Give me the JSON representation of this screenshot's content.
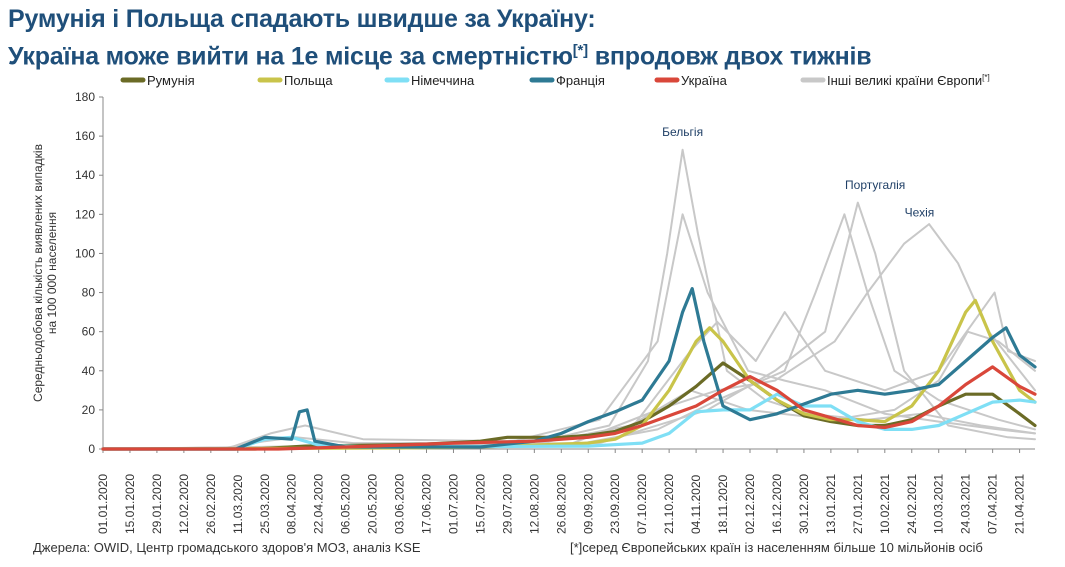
{
  "title_line1": "Румунія і Польща спадають швидше за Україну:",
  "title_line2": "Україна може вийти на 1е місце за смертністю",
  "title_mark": "[*]",
  "title_line2_end": " впродовж двох тижнів",
  "source": "Джерела: OWID, Центр громадського здоров'я МОЗ, аналіз KSE",
  "footnote": "[*]серед Європейських країн із населенням більше 10 мільйонів осіб",
  "chart_data": {
    "type": "line",
    "ylabel": [
      "Середньодобова кількість виявлених випадків",
      "на 100 000 населення"
    ],
    "ylim": [
      0,
      180
    ],
    "yticks": [
      0,
      20,
      40,
      60,
      80,
      100,
      120,
      140,
      160,
      180
    ],
    "xlim": [
      "2020-01-01",
      "2021-04-29"
    ],
    "xtick_labels": [
      "01.01.2020",
      "15.01.2020",
      "29.01.2020",
      "12.02.2020",
      "26.02.2020",
      "11.03.2020",
      "25.03.2020",
      "08.04.2020",
      "22.04.2020",
      "06.05.2020",
      "20.05.2020",
      "03.06.2020",
      "17.06.2020",
      "01.07.2020",
      "15.07.2020",
      "29.07.2020",
      "12.08.2020",
      "26.08.2020",
      "09.09.2020",
      "23.09.2020",
      "07.10.2020",
      "21.10.2020",
      "04.11.2020",
      "18.11.2020",
      "02.12.2020",
      "16.12.2020",
      "30.12.2020",
      "13.01.2021",
      "27.01.2021",
      "10.02.2021",
      "24.02.2021",
      "10.03.2021",
      "24.03.2021",
      "07.04.2021",
      "21.04.2021"
    ],
    "grid": false,
    "legend_position": "top",
    "annotations": [
      {
        "text": "Бельгія",
        "x": "2020-10-28",
        "y": 160
      },
      {
        "text": "Португалія",
        "x": "2021-02-05",
        "y": 133
      },
      {
        "text": "Чехія",
        "x": "2021-02-28",
        "y": 119
      }
    ],
    "series": [
      {
        "name": "Інші великі країни Європи",
        "name_mark": "[*]",
        "color": "#c8c8c8",
        "group": true,
        "lines": [
          [
            [
              "2020-01-01",
              0
            ],
            [
              "2020-03-01",
              0
            ],
            [
              "2020-03-25",
              4
            ],
            [
              "2020-04-10",
              6
            ],
            [
              "2020-05-10",
              3
            ],
            [
              "2020-07-01",
              3
            ],
            [
              "2020-08-20",
              5
            ],
            [
              "2020-09-20",
              12
            ],
            [
              "2020-10-10",
              45
            ],
            [
              "2020-10-20",
              100
            ],
            [
              "2020-10-28",
              153
            ],
            [
              "2020-11-05",
              110
            ],
            [
              "2020-11-20",
              40
            ],
            [
              "2020-12-10",
              25
            ],
            [
              "2021-01-01",
              18
            ],
            [
              "2021-02-01",
              15
            ],
            [
              "2021-03-01",
              18
            ],
            [
              "2021-04-01",
              12
            ],
            [
              "2021-04-29",
              8
            ]
          ],
          [
            [
              "2020-01-01",
              0
            ],
            [
              "2020-03-05",
              0
            ],
            [
              "2020-03-28",
              8
            ],
            [
              "2020-04-15",
              12
            ],
            [
              "2020-05-15",
              5
            ],
            [
              "2020-08-01",
              4
            ],
            [
              "2020-09-15",
              15
            ],
            [
              "2020-10-15",
              55
            ],
            [
              "2020-10-28",
              120
            ],
            [
              "2020-11-10",
              80
            ],
            [
              "2020-12-01",
              40
            ],
            [
              "2020-12-20",
              35
            ],
            [
              "2021-01-10",
              30
            ],
            [
              "2021-02-10",
              18
            ],
            [
              "2021-03-10",
              14
            ],
            [
              "2021-04-10",
              10
            ],
            [
              "2021-04-29",
              8
            ]
          ],
          [
            [
              "2020-01-01",
              0
            ],
            [
              "2020-09-01",
              2
            ],
            [
              "2020-10-15",
              10
            ],
            [
              "2020-11-15",
              25
            ],
            [
              "2020-12-20",
              40
            ],
            [
              "2021-01-05",
              80
            ],
            [
              "2021-01-20",
              120
            ],
            [
              "2021-02-01",
              80
            ],
            [
              "2021-02-15",
              40
            ],
            [
              "2021-03-10",
              25
            ],
            [
              "2021-04-10",
              15
            ],
            [
              "2021-04-29",
              10
            ]
          ],
          [
            [
              "2020-01-01",
              0
            ],
            [
              "2020-09-15",
              3
            ],
            [
              "2020-11-10",
              20
            ],
            [
              "2020-12-15",
              40
            ],
            [
              "2021-01-10",
              60
            ],
            [
              "2021-01-27",
              126
            ],
            [
              "2021-02-05",
              100
            ],
            [
              "2021-02-20",
              40
            ],
            [
              "2021-03-15",
              12
            ],
            [
              "2021-04-15",
              6
            ],
            [
              "2021-04-29",
              5
            ]
          ],
          [
            [
              "2020-01-01",
              0
            ],
            [
              "2020-09-01",
              3
            ],
            [
              "2020-10-15",
              20
            ],
            [
              "2020-11-15",
              30
            ],
            [
              "2020-12-15",
              35
            ],
            [
              "2021-01-15",
              55
            ],
            [
              "2021-02-01",
              80
            ],
            [
              "2021-02-20",
              105
            ],
            [
              "2021-03-05",
              115
            ],
            [
              "2021-03-20",
              95
            ],
            [
              "2021-04-05",
              60
            ],
            [
              "2021-04-29",
              30
            ]
          ],
          [
            [
              "2020-01-01",
              0
            ],
            [
              "2020-08-01",
              2
            ],
            [
              "2020-10-01",
              10
            ],
            [
              "2020-11-01",
              50
            ],
            [
              "2020-11-15",
              65
            ],
            [
              "2020-12-05",
              45
            ],
            [
              "2020-12-20",
              70
            ],
            [
              "2021-01-10",
              40
            ],
            [
              "2021-02-10",
              30
            ],
            [
              "2021-03-10",
              40
            ],
            [
              "2021-04-08",
              80
            ],
            [
              "2021-04-15",
              50
            ],
            [
              "2021-04-29",
              45
            ]
          ],
          [
            [
              "2020-01-01",
              0
            ],
            [
              "2020-08-15",
              3
            ],
            [
              "2020-10-01",
              12
            ],
            [
              "2020-11-01",
              30
            ],
            [
              "2020-12-01",
              20
            ],
            [
              "2021-01-15",
              15
            ],
            [
              "2021-02-15",
              20
            ],
            [
              "2021-03-10",
              35
            ],
            [
              "2021-03-25",
              60
            ],
            [
              "2021-04-10",
              55
            ],
            [
              "2021-04-29",
              40
            ]
          ]
        ]
      },
      {
        "name": "Румунія",
        "color": "#6b6b26",
        "points": [
          [
            "2020-01-01",
            0
          ],
          [
            "2020-03-20",
            0
          ],
          [
            "2020-04-15",
            1.5
          ],
          [
            "2020-05-20",
            2
          ],
          [
            "2020-06-17",
            2.5
          ],
          [
            "2020-07-15",
            4
          ],
          [
            "2020-07-29",
            6
          ],
          [
            "2020-08-26",
            6
          ],
          [
            "2020-09-09",
            7
          ],
          [
            "2020-09-23",
            9
          ],
          [
            "2020-10-07",
            14
          ],
          [
            "2020-10-21",
            22
          ],
          [
            "2020-11-04",
            32
          ],
          [
            "2020-11-18",
            44
          ],
          [
            "2020-12-02",
            35
          ],
          [
            "2020-12-16",
            25
          ],
          [
            "2020-12-30",
            17
          ],
          [
            "2021-01-13",
            14
          ],
          [
            "2021-01-27",
            12
          ],
          [
            "2021-02-10",
            12
          ],
          [
            "2021-02-24",
            15
          ],
          [
            "2021-03-10",
            22
          ],
          [
            "2021-03-24",
            28
          ],
          [
            "2021-04-07",
            28
          ],
          [
            "2021-04-21",
            18
          ],
          [
            "2021-04-29",
            12
          ]
        ]
      },
      {
        "name": "Польща",
        "color": "#c9c44a",
        "points": [
          [
            "2020-01-01",
            0
          ],
          [
            "2020-06-01",
            0.5
          ],
          [
            "2020-07-15",
            1
          ],
          [
            "2020-08-12",
            2
          ],
          [
            "2020-09-09",
            3
          ],
          [
            "2020-09-23",
            5
          ],
          [
            "2020-10-07",
            12
          ],
          [
            "2020-10-21",
            30
          ],
          [
            "2020-11-04",
            55
          ],
          [
            "2020-11-11",
            62
          ],
          [
            "2020-11-18",
            55
          ],
          [
            "2020-12-02",
            35
          ],
          [
            "2020-12-16",
            25
          ],
          [
            "2020-12-30",
            18
          ],
          [
            "2021-01-13",
            15
          ],
          [
            "2021-01-27",
            15
          ],
          [
            "2021-02-10",
            14
          ],
          [
            "2021-02-24",
            22
          ],
          [
            "2021-03-10",
            40
          ],
          [
            "2021-03-24",
            70
          ],
          [
            "2021-03-29",
            76
          ],
          [
            "2021-04-07",
            55
          ],
          [
            "2021-04-21",
            30
          ],
          [
            "2021-04-29",
            24
          ]
        ]
      },
      {
        "name": "Німеччина",
        "color": "#7fdff5",
        "points": [
          [
            "2020-01-01",
            0
          ],
          [
            "2020-03-10",
            0
          ],
          [
            "2020-03-25",
            5
          ],
          [
            "2020-04-08",
            6
          ],
          [
            "2020-04-22",
            2
          ],
          [
            "2020-05-20",
            1
          ],
          [
            "2020-09-09",
            1.5
          ],
          [
            "2020-10-07",
            3
          ],
          [
            "2020-10-21",
            8
          ],
          [
            "2020-11-04",
            19
          ],
          [
            "2020-11-18",
            20
          ],
          [
            "2020-12-02",
            20
          ],
          [
            "2020-12-16",
            28
          ],
          [
            "2020-12-30",
            22
          ],
          [
            "2021-01-13",
            22
          ],
          [
            "2021-01-27",
            14
          ],
          [
            "2021-02-10",
            10
          ],
          [
            "2021-02-24",
            10
          ],
          [
            "2021-03-10",
            12
          ],
          [
            "2021-03-24",
            18
          ],
          [
            "2021-04-07",
            24
          ],
          [
            "2021-04-21",
            25
          ],
          [
            "2021-04-29",
            24
          ]
        ]
      },
      {
        "name": "Франція",
        "color": "#2e7a94",
        "points": [
          [
            "2020-01-01",
            0
          ],
          [
            "2020-03-10",
            0
          ],
          [
            "2020-03-25",
            6
          ],
          [
            "2020-04-08",
            5
          ],
          [
            "2020-04-12",
            19
          ],
          [
            "2020-04-16",
            20
          ],
          [
            "2020-04-20",
            4
          ],
          [
            "2020-05-06",
            1
          ],
          [
            "2020-07-15",
            1
          ],
          [
            "2020-08-12",
            4
          ],
          [
            "2020-08-26",
            8
          ],
          [
            "2020-09-09",
            14
          ],
          [
            "2020-09-23",
            19
          ],
          [
            "2020-10-07",
            25
          ],
          [
            "2020-10-21",
            45
          ],
          [
            "2020-10-28",
            70
          ],
          [
            "2020-11-02",
            82
          ],
          [
            "2020-11-08",
            55
          ],
          [
            "2020-11-18",
            22
          ],
          [
            "2020-12-02",
            15
          ],
          [
            "2020-12-16",
            18
          ],
          [
            "2020-12-30",
            23
          ],
          [
            "2021-01-13",
            28
          ],
          [
            "2021-01-27",
            30
          ],
          [
            "2021-02-10",
            28
          ],
          [
            "2021-02-24",
            30
          ],
          [
            "2021-03-10",
            33
          ],
          [
            "2021-03-24",
            45
          ],
          [
            "2021-04-07",
            57
          ],
          [
            "2021-04-14",
            62
          ],
          [
            "2021-04-21",
            48
          ],
          [
            "2021-04-29",
            42
          ]
        ]
      },
      {
        "name": "Україна",
        "color": "#d9473a",
        "points": [
          [
            "2020-01-01",
            0
          ],
          [
            "2020-04-01",
            0
          ],
          [
            "2020-05-06",
            1
          ],
          [
            "2020-06-03",
            2
          ],
          [
            "2020-07-01",
            3
          ],
          [
            "2020-08-12",
            4
          ],
          [
            "2020-09-09",
            6
          ],
          [
            "2020-09-23",
            8
          ],
          [
            "2020-10-07",
            12
          ],
          [
            "2020-10-21",
            17
          ],
          [
            "2020-11-04",
            22
          ],
          [
            "2020-11-18",
            30
          ],
          [
            "2020-12-02",
            37
          ],
          [
            "2020-12-16",
            30
          ],
          [
            "2020-12-30",
            20
          ],
          [
            "2021-01-13",
            16
          ],
          [
            "2021-01-27",
            12
          ],
          [
            "2021-02-10",
            11
          ],
          [
            "2021-02-24",
            14
          ],
          [
            "2021-03-10",
            22
          ],
          [
            "2021-03-24",
            33
          ],
          [
            "2021-04-07",
            42
          ],
          [
            "2021-04-21",
            32
          ],
          [
            "2021-04-29",
            28
          ]
        ]
      }
    ]
  }
}
